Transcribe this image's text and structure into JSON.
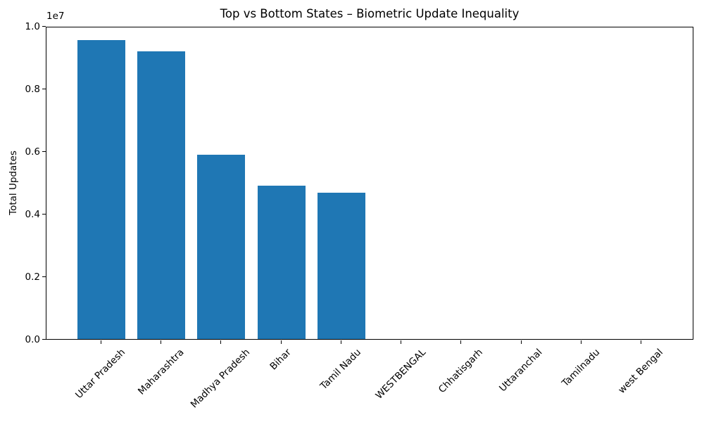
{
  "chart_data": {
    "type": "bar",
    "title": "Top vs Bottom States – Biometric Update Inequality",
    "xlabel": "",
    "ylabel": "Total Updates",
    "offset_text": "1e7",
    "categories": [
      "Uttar Pradesh",
      "Maharashtra",
      "Madhya Pradesh",
      "Bihar",
      "Tamil Nadu",
      "WESTBENGAL",
      "Chhatisgarh",
      "Uttaranchal",
      "Tamilnadu",
      "west Bengal"
    ],
    "values": [
      9550000,
      9190000,
      5890000,
      4890000,
      4680000,
      0,
      0,
      0,
      0,
      0
    ],
    "ylim": [
      0,
      10000000
    ],
    "yticks": [
      0,
      2000000,
      4000000,
      6000000,
      8000000,
      10000000
    ],
    "ytick_labels": [
      "0.0",
      "0.2",
      "0.4",
      "0.6",
      "0.8",
      "1.0"
    ],
    "bar_color": "#1f77b4",
    "axis_color": "#000000",
    "grid": false,
    "legend": null
  }
}
